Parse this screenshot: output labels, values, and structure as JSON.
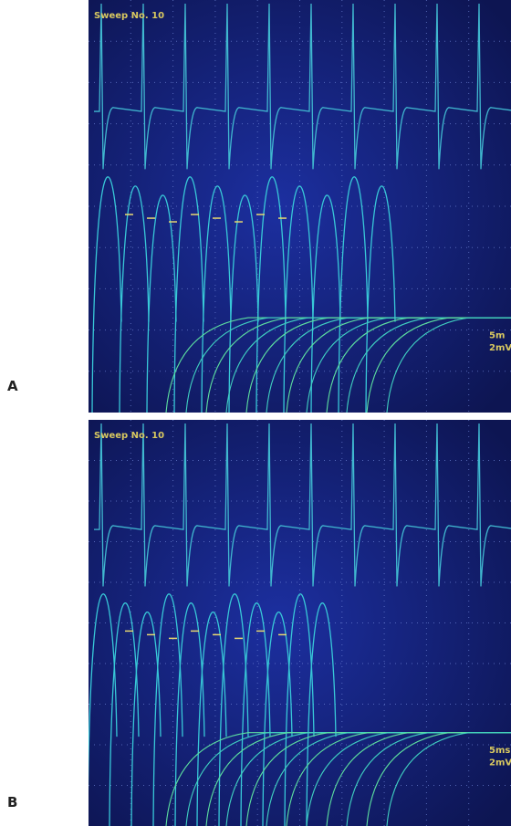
{
  "figure": {
    "panels": [
      {
        "label": "A",
        "screen": {
          "sweep": "Sweep No. 10",
          "time_scale": "5m",
          "amplitude_scale": "2mV"
        }
      },
      {
        "label": "B",
        "screen": {
          "sweep": "Sweep No. 10",
          "time_scale": "5ms",
          "amplitude_scale": "2mV"
        }
      }
    ]
  }
}
